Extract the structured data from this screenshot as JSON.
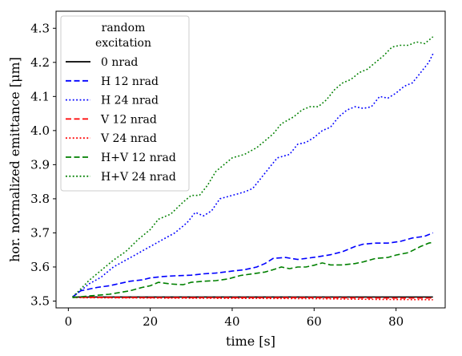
{
  "chart_data": {
    "type": "line",
    "xlabel": "time [s]",
    "ylabel": "hor. normalized emittance [μm]",
    "xlim": [
      -3,
      92
    ],
    "ylim": [
      3.48,
      4.35
    ],
    "xticks": [
      0,
      20,
      40,
      60,
      80
    ],
    "xtick_labels": [
      "0",
      "20",
      "40",
      "60",
      "80"
    ],
    "yticks": [
      3.5,
      3.6,
      3.7,
      3.8,
      3.9,
      4.0,
      4.1,
      4.2,
      4.3
    ],
    "ytick_labels": [
      "3.5",
      "3.6",
      "3.7",
      "3.8",
      "3.9",
      "4.0",
      "4.1",
      "4.2",
      "4.3"
    ],
    "grid": false,
    "legend": {
      "placement": "top-left",
      "title": [
        "random",
        "excitation"
      ]
    },
    "series": [
      {
        "name": "0 nrad",
        "color": "#000000",
        "dash": "solid",
        "points": [
          [
            1,
            3.512
          ],
          [
            10,
            3.512
          ],
          [
            20,
            3.512
          ],
          [
            30,
            3.512
          ],
          [
            40,
            3.512
          ],
          [
            50,
            3.512
          ],
          [
            60,
            3.512
          ],
          [
            70,
            3.512
          ],
          [
            80,
            3.512
          ],
          [
            89,
            3.512
          ]
        ]
      },
      {
        "name": "H 12 nrad",
        "color": "#0000ff",
        "dash": "dashed",
        "points": [
          [
            1,
            3.512
          ],
          [
            3,
            3.53
          ],
          [
            5,
            3.535
          ],
          [
            7,
            3.54
          ],
          [
            10,
            3.545
          ],
          [
            12,
            3.55
          ],
          [
            15,
            3.558
          ],
          [
            18,
            3.562
          ],
          [
            20,
            3.568
          ],
          [
            23,
            3.572
          ],
          [
            26,
            3.574
          ],
          [
            30,
            3.576
          ],
          [
            33,
            3.58
          ],
          [
            36,
            3.582
          ],
          [
            40,
            3.588
          ],
          [
            43,
            3.592
          ],
          [
            46,
            3.6
          ],
          [
            48,
            3.61
          ],
          [
            50,
            3.625
          ],
          [
            53,
            3.628
          ],
          [
            56,
            3.622
          ],
          [
            58,
            3.625
          ],
          [
            61,
            3.63
          ],
          [
            64,
            3.636
          ],
          [
            67,
            3.645
          ],
          [
            70,
            3.66
          ],
          [
            72,
            3.667
          ],
          [
            75,
            3.67
          ],
          [
            78,
            3.67
          ],
          [
            81,
            3.675
          ],
          [
            84,
            3.685
          ],
          [
            87,
            3.69
          ],
          [
            89,
            3.7
          ]
        ]
      },
      {
        "name": "H 24 nrad",
        "color": "#0000ff",
        "dash": "dotted",
        "points": [
          [
            1,
            3.512
          ],
          [
            3,
            3.53
          ],
          [
            5,
            3.55
          ],
          [
            8,
            3.57
          ],
          [
            11,
            3.6
          ],
          [
            14,
            3.62
          ],
          [
            17,
            3.64
          ],
          [
            20,
            3.66
          ],
          [
            23,
            3.68
          ],
          [
            26,
            3.7
          ],
          [
            29,
            3.73
          ],
          [
            31,
            3.76
          ],
          [
            33,
            3.75
          ],
          [
            35,
            3.765
          ],
          [
            37,
            3.8
          ],
          [
            40,
            3.81
          ],
          [
            43,
            3.82
          ],
          [
            45,
            3.83
          ],
          [
            47,
            3.86
          ],
          [
            49,
            3.89
          ],
          [
            51,
            3.92
          ],
          [
            54,
            3.93
          ],
          [
            56,
            3.96
          ],
          [
            58,
            3.965
          ],
          [
            60,
            3.98
          ],
          [
            62,
            4.0
          ],
          [
            64,
            4.01
          ],
          [
            66,
            4.04
          ],
          [
            68,
            4.06
          ],
          [
            70,
            4.07
          ],
          [
            72,
            4.065
          ],
          [
            74,
            4.07
          ],
          [
            76,
            4.1
          ],
          [
            78,
            4.095
          ],
          [
            80,
            4.11
          ],
          [
            82,
            4.13
          ],
          [
            84,
            4.14
          ],
          [
            86,
            4.17
          ],
          [
            88,
            4.2
          ],
          [
            89,
            4.225
          ]
        ]
      },
      {
        "name": "V 12 nrad",
        "color": "#ff0000",
        "dash": "dashed",
        "points": [
          [
            1,
            3.511
          ],
          [
            20,
            3.51
          ],
          [
            40,
            3.51
          ],
          [
            60,
            3.51
          ],
          [
            80,
            3.509
          ],
          [
            89,
            3.509
          ]
        ]
      },
      {
        "name": "V 24 nrad",
        "color": "#ff0000",
        "dash": "dotted",
        "points": [
          [
            1,
            3.51
          ],
          [
            20,
            3.509
          ],
          [
            40,
            3.508
          ],
          [
            60,
            3.507
          ],
          [
            75,
            3.505
          ],
          [
            89,
            3.504
          ]
        ]
      },
      {
        "name": "H+V 12 nrad",
        "color": "#008000",
        "dash": "dashed",
        "points": [
          [
            1,
            3.51
          ],
          [
            5,
            3.515
          ],
          [
            10,
            3.52
          ],
          [
            15,
            3.53
          ],
          [
            18,
            3.54
          ],
          [
            20,
            3.545
          ],
          [
            22,
            3.555
          ],
          [
            25,
            3.55
          ],
          [
            28,
            3.548
          ],
          [
            30,
            3.555
          ],
          [
            33,
            3.558
          ],
          [
            36,
            3.56
          ],
          [
            39,
            3.565
          ],
          [
            42,
            3.575
          ],
          [
            45,
            3.58
          ],
          [
            48,
            3.585
          ],
          [
            50,
            3.592
          ],
          [
            52,
            3.6
          ],
          [
            54,
            3.595
          ],
          [
            56,
            3.6
          ],
          [
            58,
            3.6
          ],
          [
            60,
            3.605
          ],
          [
            62,
            3.612
          ],
          [
            64,
            3.606
          ],
          [
            67,
            3.606
          ],
          [
            70,
            3.61
          ],
          [
            72,
            3.615
          ],
          [
            75,
            3.625
          ],
          [
            78,
            3.628
          ],
          [
            80,
            3.635
          ],
          [
            83,
            3.642
          ],
          [
            86,
            3.66
          ],
          [
            88,
            3.67
          ],
          [
            89,
            3.672
          ]
        ]
      },
      {
        "name": "H+V 24 nrad",
        "color": "#008000",
        "dash": "dotted",
        "points": [
          [
            1,
            3.512
          ],
          [
            3,
            3.535
          ],
          [
            5,
            3.56
          ],
          [
            8,
            3.59
          ],
          [
            11,
            3.62
          ],
          [
            14,
            3.645
          ],
          [
            17,
            3.68
          ],
          [
            20,
            3.71
          ],
          [
            22,
            3.74
          ],
          [
            25,
            3.755
          ],
          [
            28,
            3.79
          ],
          [
            30,
            3.81
          ],
          [
            32,
            3.81
          ],
          [
            34,
            3.84
          ],
          [
            36,
            3.88
          ],
          [
            38,
            3.9
          ],
          [
            40,
            3.92
          ],
          [
            43,
            3.93
          ],
          [
            46,
            3.95
          ],
          [
            48,
            3.97
          ],
          [
            50,
            3.99
          ],
          [
            52,
            4.02
          ],
          [
            55,
            4.04
          ],
          [
            57,
            4.06
          ],
          [
            59,
            4.07
          ],
          [
            61,
            4.07
          ],
          [
            63,
            4.09
          ],
          [
            65,
            4.12
          ],
          [
            67,
            4.14
          ],
          [
            69,
            4.15
          ],
          [
            71,
            4.17
          ],
          [
            73,
            4.18
          ],
          [
            75,
            4.2
          ],
          [
            77,
            4.22
          ],
          [
            79,
            4.245
          ],
          [
            81,
            4.25
          ],
          [
            83,
            4.25
          ],
          [
            85,
            4.26
          ],
          [
            87,
            4.255
          ],
          [
            89,
            4.275
          ]
        ]
      }
    ]
  }
}
